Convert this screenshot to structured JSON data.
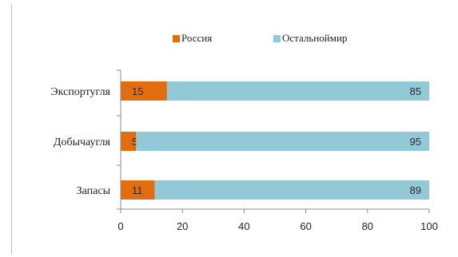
{
  "chart_data": {
    "type": "bar",
    "orientation": "horizontal",
    "stacked": true,
    "categories": [
      "Экспортугля",
      "Добычаугля",
      "Запасы"
    ],
    "series": [
      {
        "name": "Россия",
        "values": [
          15,
          5,
          11
        ],
        "color": "#e06d10",
        "label_color": "#2b2b2b"
      },
      {
        "name": "Остальноймир",
        "values": [
          85,
          95,
          89
        ],
        "color": "#93c8d6",
        "label_color": "#2b2b2b"
      }
    ],
    "xlim": [
      0,
      100
    ],
    "xticks": [
      "0",
      "20",
      "40",
      "60",
      "80",
      "100"
    ],
    "grid": false,
    "legend_position": "top"
  }
}
